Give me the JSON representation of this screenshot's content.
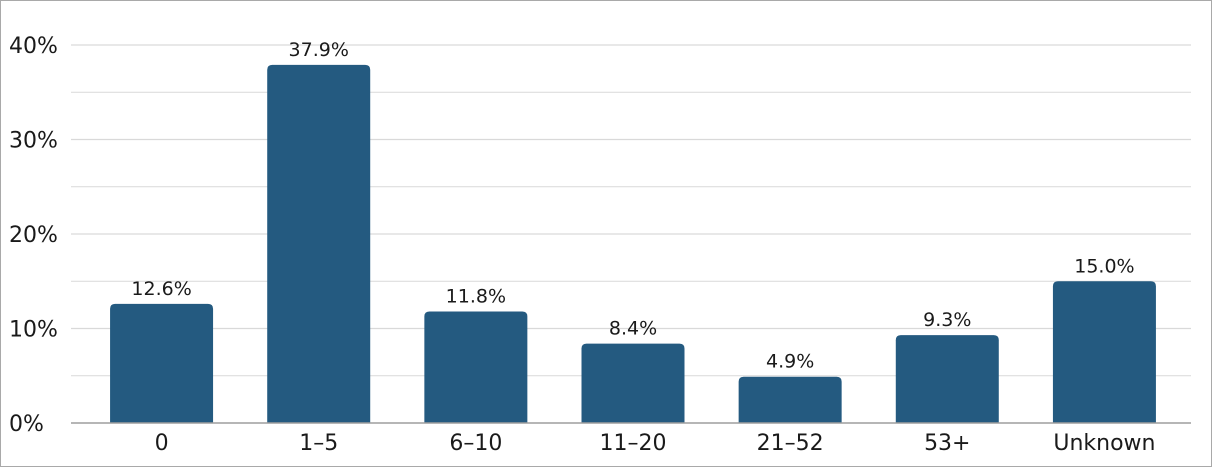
{
  "chart_data": {
    "type": "bar",
    "categories": [
      "0",
      "1–5",
      "6–10",
      "11–20",
      "21–52",
      "53+",
      "Unknown"
    ],
    "values": [
      12.6,
      37.9,
      11.8,
      8.4,
      4.9,
      9.3,
      15.0
    ],
    "data_labels": [
      "12.6%",
      "37.9%",
      "11.8%",
      "8.4%",
      "4.9%",
      "9.3%",
      "15.0%"
    ],
    "yticks": [
      0,
      10,
      20,
      30,
      40
    ],
    "ytick_labels": [
      "0%",
      "10%",
      "20%",
      "30%",
      "40%"
    ],
    "ylim": [
      0,
      40
    ],
    "grid": true,
    "legend": "none",
    "bar_color": "#245a80",
    "grid_color": "#d9d9d9"
  }
}
